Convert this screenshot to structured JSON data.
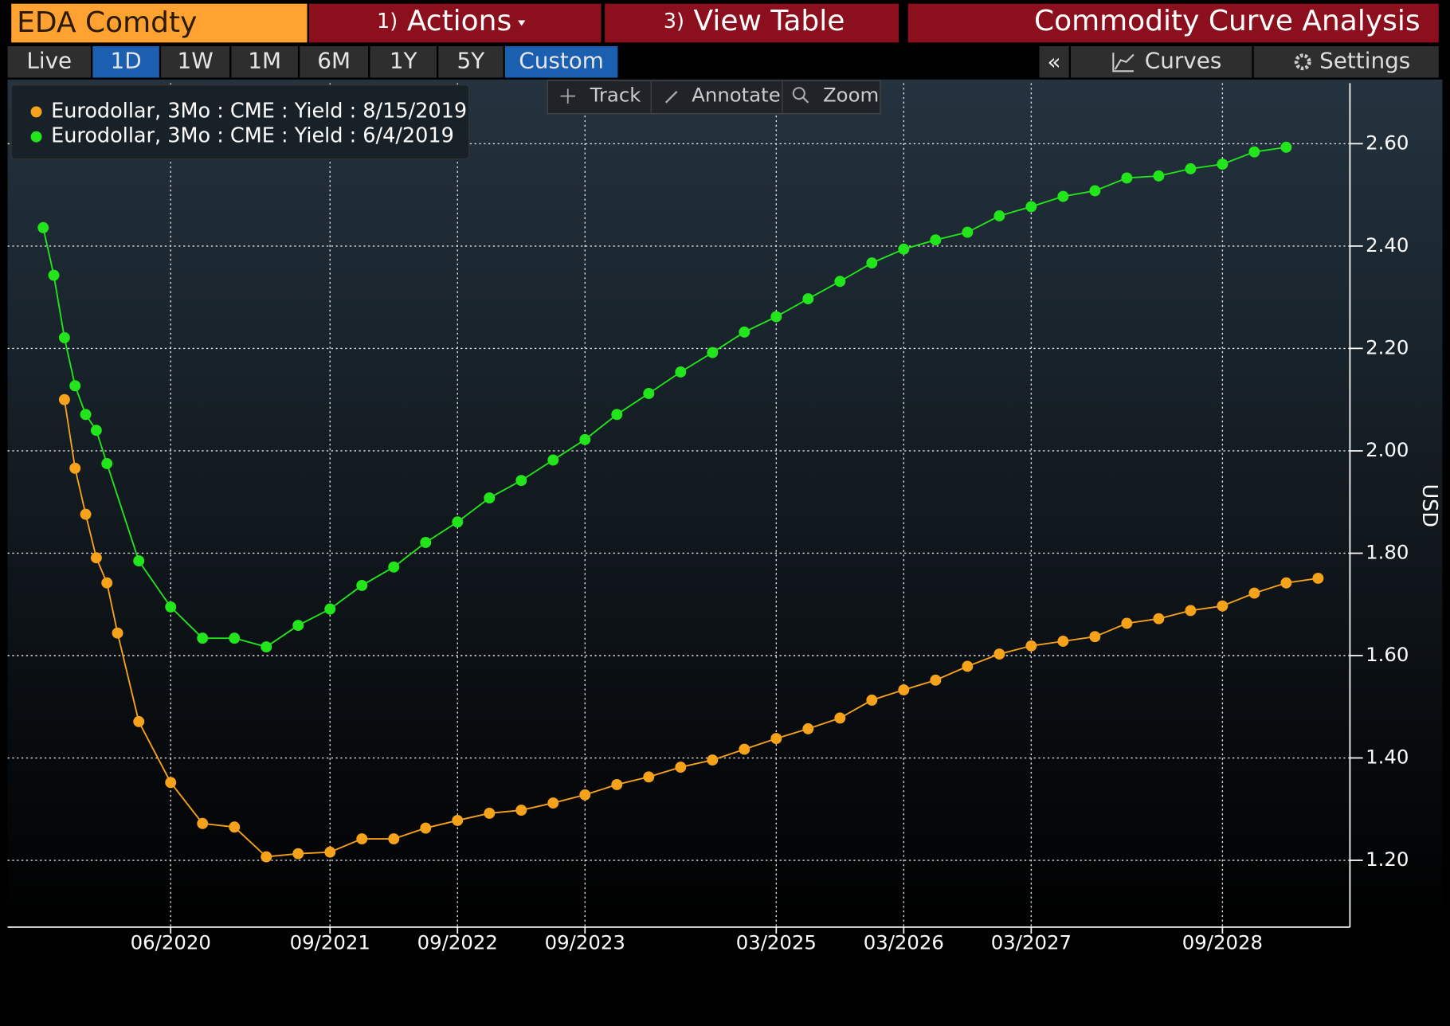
{
  "toolbar": {
    "security": "EDA Comdty",
    "actions_num": "1)",
    "actions": "Actions",
    "view_num": "3)",
    "view": "View Table",
    "function": "Commodity Curve Analysis"
  },
  "tabs": [
    "Live",
    "1D",
    "1W",
    "1M",
    "6M",
    "1Y",
    "5Y",
    "Custom"
  ],
  "panel": {
    "collapse": "«",
    "curves": "Curves",
    "settings": "Settings"
  },
  "tools": [
    "Track",
    "Annotate",
    "Zoom"
  ],
  "chart_data": {
    "type": "line",
    "ylabel": "USD",
    "grid": true,
    "legend": "top-left",
    "xlim": [
      "03/2019",
      "09/2029"
    ],
    "xticks": [
      "06/2020",
      "09/2021",
      "09/2022",
      "09/2023",
      "03/2025",
      "03/2026",
      "03/2027",
      "09/2028"
    ],
    "ylim": [
      1.075,
      2.72
    ],
    "yticks": [
      {
        "value": 1.2,
        "label": "1.20"
      },
      {
        "value": 1.4,
        "label": "1.40"
      },
      {
        "value": 1.6,
        "label": "1.60"
      },
      {
        "value": 1.8,
        "label": "1.80"
      },
      {
        "value": 2.0,
        "label": "2.00"
      },
      {
        "value": 2.2,
        "label": "2.20"
      },
      {
        "value": 2.4,
        "label": "2.40"
      },
      {
        "value": 2.6,
        "label": "2.60"
      }
    ],
    "series": [
      {
        "name": "Eurodollar, 3Mo : CME : Yield : 8/15/2019",
        "color": "#f7a21b",
        "x": [
          "08/2019",
          "09/2019",
          "10/2019",
          "11/2019",
          "12/2019",
          "01/2020",
          "03/2020",
          "06/2020",
          "09/2020",
          "12/2020",
          "03/2021",
          "06/2021",
          "09/2021",
          "12/2021",
          "03/2022",
          "06/2022",
          "09/2022",
          "12/2022",
          "03/2023",
          "06/2023",
          "09/2023",
          "12/2023",
          "03/2024",
          "06/2024",
          "09/2024",
          "12/2024",
          "03/2025",
          "06/2025",
          "09/2025",
          "12/2025",
          "03/2026",
          "06/2026",
          "09/2026",
          "12/2026",
          "03/2027",
          "06/2027",
          "09/2027",
          "12/2027",
          "03/2028",
          "06/2028",
          "09/2028",
          "12/2028",
          "03/2029",
          "06/2029"
        ],
        "values": [
          2.1,
          1.966,
          1.876,
          1.791,
          1.742,
          1.644,
          1.471,
          1.352,
          1.272,
          1.265,
          1.207,
          1.213,
          1.216,
          1.242,
          1.242,
          1.263,
          1.278,
          1.292,
          1.298,
          1.312,
          1.328,
          1.348,
          1.363,
          1.382,
          1.396,
          1.417,
          1.438,
          1.457,
          1.478,
          1.513,
          1.533,
          1.552,
          1.579,
          1.603,
          1.619,
          1.628,
          1.637,
          1.663,
          1.672,
          1.688,
          1.697,
          1.722,
          1.742,
          1.751
        ]
      },
      {
        "name": "Eurodollar, 3Mo : CME : Yield : 6/4/2019",
        "color": "#22e51c",
        "x": [
          "06/2019",
          "07/2019",
          "08/2019",
          "09/2019",
          "10/2019",
          "11/2019",
          "12/2019",
          "03/2020",
          "06/2020",
          "09/2020",
          "12/2020",
          "03/2021",
          "06/2021",
          "09/2021",
          "12/2021",
          "03/2022",
          "06/2022",
          "09/2022",
          "12/2022",
          "03/2023",
          "06/2023",
          "09/2023",
          "12/2023",
          "03/2024",
          "06/2024",
          "09/2024",
          "12/2024",
          "03/2025",
          "06/2025",
          "09/2025",
          "12/2025",
          "03/2026",
          "06/2026",
          "09/2026",
          "12/2026",
          "03/2027",
          "06/2027",
          "09/2027",
          "12/2027",
          "03/2028",
          "06/2028",
          "09/2028",
          "12/2028",
          "03/2029"
        ],
        "values": [
          2.436,
          2.343,
          2.221,
          2.127,
          2.071,
          2.04,
          1.975,
          1.785,
          1.695,
          1.634,
          1.634,
          1.617,
          1.659,
          1.691,
          1.737,
          1.773,
          1.821,
          1.861,
          1.908,
          1.942,
          1.982,
          2.022,
          2.071,
          2.112,
          2.154,
          2.192,
          2.232,
          2.262,
          2.297,
          2.331,
          2.367,
          2.394,
          2.412,
          2.427,
          2.459,
          2.477,
          2.497,
          2.508,
          2.533,
          2.537,
          2.551,
          2.56,
          2.584,
          2.593
        ]
      }
    ]
  }
}
